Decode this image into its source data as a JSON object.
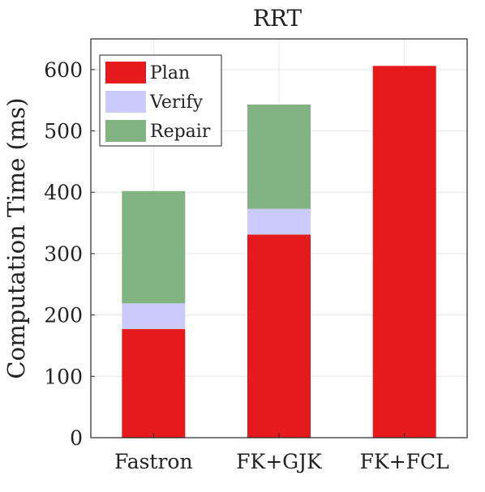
{
  "chart_data": {
    "type": "bar",
    "stacked": true,
    "title": "RRT",
    "xlabel": "",
    "ylabel": "Computation Time (ms)",
    "categories": [
      "Fastron",
      "FK+GJK",
      "FK+FCL"
    ],
    "series": [
      {
        "name": "Plan",
        "values": [
          177,
          331,
          606
        ],
        "color": "#e41a1c"
      },
      {
        "name": "Verify",
        "values": [
          42,
          42,
          0
        ],
        "color": "#cbcbfb"
      },
      {
        "name": "Repair",
        "values": [
          183,
          170,
          0
        ],
        "color": "#82b383"
      }
    ],
    "ylim": [
      0,
      650
    ],
    "yticks": [
      0,
      100,
      200,
      300,
      400,
      500,
      600
    ],
    "grid": true,
    "legend_position": "top-left"
  }
}
